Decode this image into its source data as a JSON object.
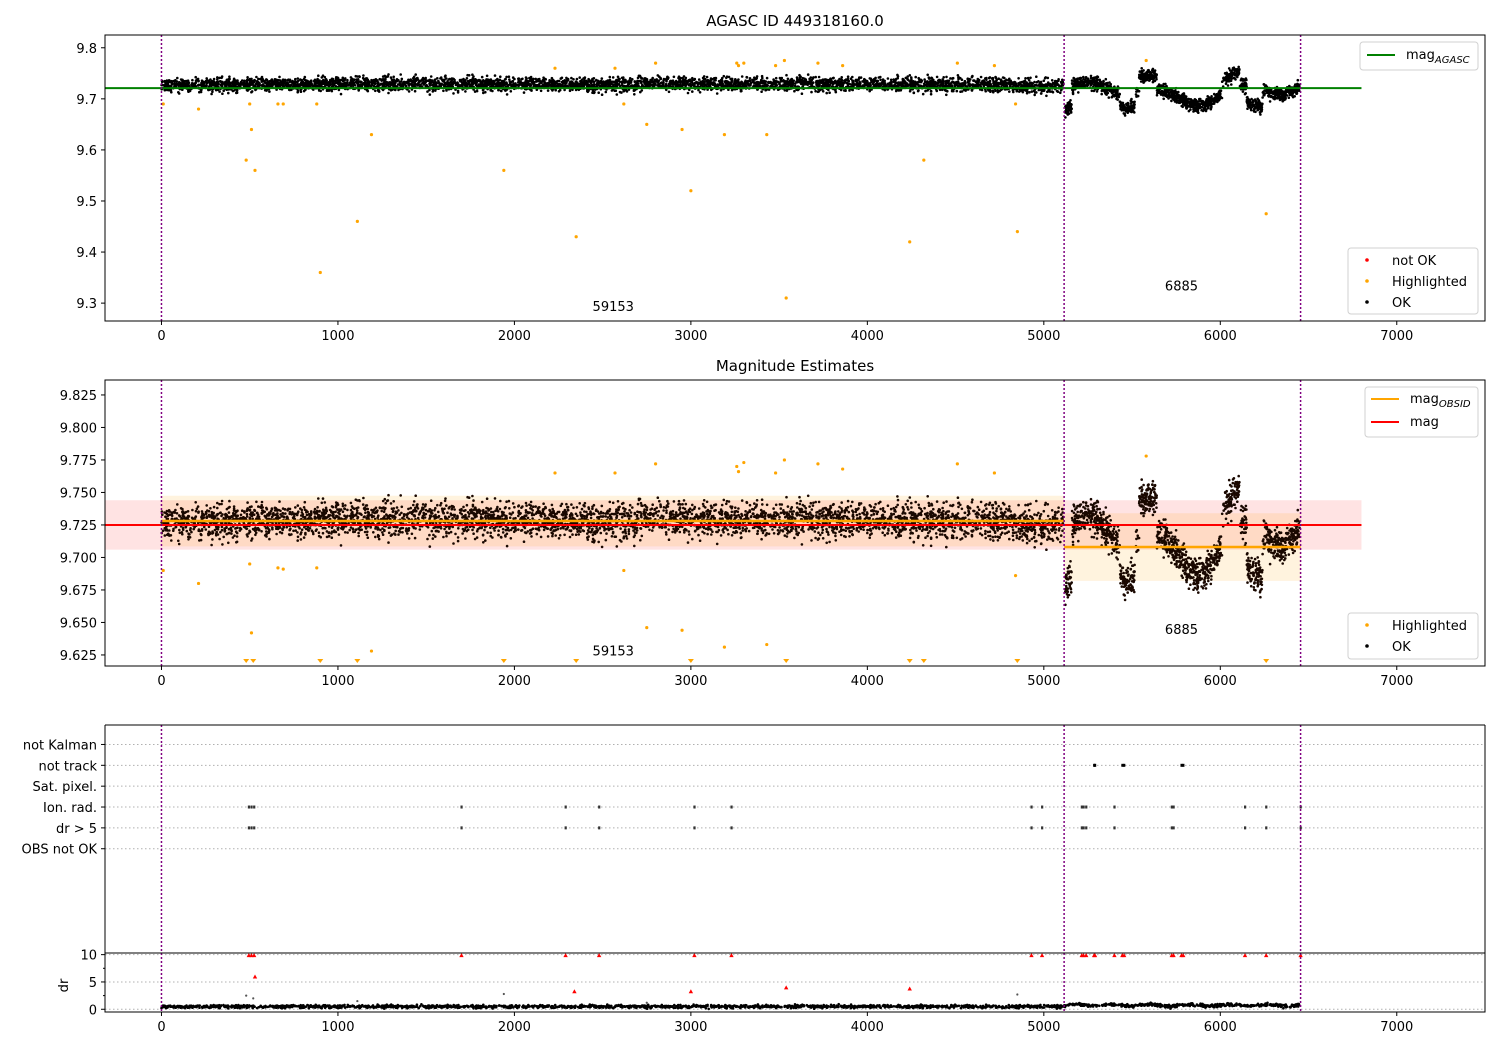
{
  "chart_data": [
    {
      "type": "scatter",
      "title": "AGASC ID 449318160.0",
      "xlabel": "",
      "ylabel": "",
      "xlim": [
        -320,
        7500
      ],
      "ylim": [
        9.265,
        9.825
      ],
      "xticks": [
        0,
        1000,
        2000,
        3000,
        4000,
        5000,
        6000,
        7000
      ],
      "yticks": [
        9.3,
        9.4,
        9.5,
        9.6,
        9.7,
        9.8
      ],
      "ytick_labels": [
        "9.3",
        "9.4",
        "9.5",
        "9.6",
        "9.7",
        "9.8"
      ],
      "vlines": [
        0,
        5115,
        6455
      ],
      "hline": {
        "y": 9.721,
        "x_range": [
          -320,
          6800
        ],
        "color": "#008000"
      },
      "annotations": [
        {
          "text": "59153",
          "x": 2560,
          "y": 9.285
        },
        {
          "text": "6885",
          "x": 5780,
          "y": 9.325
        }
      ],
      "segments": [
        {
          "x_range": [
            0,
            5115
          ],
          "mean": 9.727,
          "spread": 0.0095
        },
        {
          "x_range": [
            5115,
            6455
          ],
          "mean": 9.711,
          "spread": 0.02
        }
      ],
      "highlighted_points": [
        [
          10,
          9.69
        ],
        [
          210,
          9.68
        ],
        [
          480,
          9.58
        ],
        [
          500,
          9.69
        ],
        [
          510,
          9.64
        ],
        [
          530,
          9.56
        ],
        [
          660,
          9.69
        ],
        [
          690,
          9.69
        ],
        [
          880,
          9.69
        ],
        [
          900,
          9.36
        ],
        [
          1110,
          9.46
        ],
        [
          1190,
          9.63
        ],
        [
          1940,
          9.56
        ],
        [
          2230,
          9.76
        ],
        [
          2350,
          9.43
        ],
        [
          2570,
          9.76
        ],
        [
          2620,
          9.69
        ],
        [
          2750,
          9.65
        ],
        [
          2800,
          9.77
        ],
        [
          2950,
          9.64
        ],
        [
          3000,
          9.52
        ],
        [
          3190,
          9.63
        ],
        [
          3260,
          9.77
        ],
        [
          3270,
          9.765
        ],
        [
          3300,
          9.77
        ],
        [
          3430,
          9.63
        ],
        [
          3480,
          9.765
        ],
        [
          3530,
          9.775
        ],
        [
          3540,
          9.31
        ],
        [
          3720,
          9.77
        ],
        [
          3860,
          9.765
        ],
        [
          4240,
          9.42
        ],
        [
          4320,
          9.58
        ],
        [
          4510,
          9.77
        ],
        [
          4720,
          9.765
        ],
        [
          4840,
          9.69
        ],
        [
          4850,
          9.44
        ],
        [
          5580,
          9.775
        ],
        [
          6260,
          9.475
        ]
      ],
      "legend": {
        "placement": "top-right",
        "entries": [
          {
            "label": "mag",
            "sub": "AGASC",
            "color": "#008000"
          }
        ]
      },
      "legend2": {
        "placement": "bottom-right",
        "entries": [
          {
            "label": "not OK",
            "color": "#ff0000"
          },
          {
            "label": "Highlighted",
            "color": "#ffa500"
          },
          {
            "label": "OK",
            "color": "#000000"
          }
        ]
      }
    },
    {
      "type": "scatter",
      "title": "Magnitude Estimates",
      "xlabel": "",
      "ylabel": "",
      "xlim": [
        -320,
        7500
      ],
      "ylim": [
        9.6165,
        9.8365
      ],
      "xticks": [
        0,
        1000,
        2000,
        3000,
        4000,
        5000,
        6000,
        7000
      ],
      "yticks": [
        9.625,
        9.65,
        9.675,
        9.7,
        9.725,
        9.75,
        9.775,
        9.8,
        9.825
      ],
      "ytick_labels": [
        "9.625",
        "9.650",
        "9.675",
        "9.700",
        "9.725",
        "9.750",
        "9.775",
        "9.800",
        "9.825"
      ],
      "vlines": [
        0,
        5115,
        6455
      ],
      "mag_line": {
        "y": 9.725,
        "band": [
          9.706,
          9.744
        ],
        "x_range": [
          -320,
          6800
        ],
        "color": "#ff0000"
      },
      "mag_obsid": [
        {
          "x_range": [
            0,
            5115
          ],
          "y": 9.728,
          "band": [
            9.7085,
            9.7475
          ]
        },
        {
          "x_range": [
            5115,
            6455
          ],
          "y": 9.708,
          "band": [
            9.682,
            9.734
          ]
        }
      ],
      "annotations": [
        {
          "text": "59153",
          "x": 2560,
          "y": 9.6245
        },
        {
          "text": "6885",
          "x": 5780,
          "y": 9.641
        }
      ],
      "highlighted_points": [
        [
          10,
          9.69
        ],
        [
          210,
          9.68
        ],
        [
          500,
          9.695
        ],
        [
          510,
          9.642
        ],
        [
          660,
          9.692
        ],
        [
          690,
          9.691
        ],
        [
          880,
          9.692
        ],
        [
          1190,
          9.628
        ],
        [
          2230,
          9.765
        ],
        [
          2570,
          9.765
        ],
        [
          2620,
          9.69
        ],
        [
          2750,
          9.646
        ],
        [
          2800,
          9.772
        ],
        [
          2950,
          9.644
        ],
        [
          3190,
          9.631
        ],
        [
          3260,
          9.77
        ],
        [
          3270,
          9.766
        ],
        [
          3300,
          9.773
        ],
        [
          3430,
          9.633
        ],
        [
          3480,
          9.765
        ],
        [
          3530,
          9.775
        ],
        [
          3720,
          9.772
        ],
        [
          3860,
          9.768
        ],
        [
          4510,
          9.772
        ],
        [
          4720,
          9.765
        ],
        [
          4840,
          9.686
        ],
        [
          5580,
          9.778
        ]
      ],
      "clipped_highlighted_x": [
        480,
        520,
        900,
        1110,
        1940,
        2350,
        3000,
        3540,
        4240,
        4320,
        4850,
        6260
      ],
      "legend": {
        "placement": "top-right",
        "entries": [
          {
            "label": "mag",
            "sub": "OBSID",
            "color": "#ffa500"
          },
          {
            "label": "mag",
            "color": "#ff0000"
          }
        ]
      },
      "legend2": {
        "placement": "bottom-right",
        "entries": [
          {
            "label": "Highlighted",
            "color": "#ffa500"
          },
          {
            "label": "OK",
            "color": "#000000"
          }
        ]
      }
    },
    {
      "type": "scatter",
      "title": "",
      "xlabel": "",
      "ylabel": "",
      "xlim": [
        -320,
        7500
      ],
      "ylim": [
        -0.5,
        15.9
      ],
      "ytick_labels": [
        "not Kalman",
        "not track",
        "Sat. pixel.",
        "Ion. rad.",
        "dr > 5",
        "OBS not OK"
      ],
      "ytick_values": [
        14.5,
        13,
        11.5,
        10,
        8.5,
        7
      ],
      "vlines": [
        0,
        5115,
        6455
      ],
      "flags": {
        "not track": [
          5285,
          5290,
          5445,
          5455,
          5780,
          5790
        ],
        "Ion. rad.": [
          495,
          510,
          525,
          1700,
          2290,
          2480,
          3020,
          3230,
          4930,
          4990,
          5215,
          5225,
          5240,
          5400,
          5725,
          5735,
          6140,
          6260,
          6455
        ],
        "dr > 5": [
          495,
          510,
          525,
          1700,
          2290,
          2480,
          3020,
          3230,
          4930,
          4990,
          5215,
          5225,
          5240,
          5400,
          5725,
          5735,
          6140,
          6260,
          6455
        ]
      }
    },
    {
      "type": "scatter",
      "title": "",
      "xlabel": "",
      "ylabel": "dr",
      "xlim": [
        -320,
        7500
      ],
      "ylim": [
        -0.5,
        10.3
      ],
      "xticks": [
        0,
        1000,
        2000,
        3000,
        4000,
        5000,
        6000,
        7000
      ],
      "yticks": [
        0,
        5,
        10
      ],
      "ytick_labels": [
        "0",
        "5",
        "10"
      ],
      "vlines": [
        0,
        5115,
        6455
      ],
      "typical_dr": 0.5,
      "not_ok_points": [
        [
          495,
          9.9
        ],
        [
          510,
          9.9
        ],
        [
          525,
          9.9
        ],
        [
          530,
          6.0
        ],
        [
          1700,
          9.9
        ],
        [
          2290,
          9.9
        ],
        [
          2340,
          3.3
        ],
        [
          2480,
          9.9
        ],
        [
          3000,
          3.3
        ],
        [
          3020,
          9.9
        ],
        [
          3230,
          9.9
        ],
        [
          3540,
          4.0
        ],
        [
          4240,
          3.8
        ],
        [
          4930,
          9.9
        ],
        [
          4990,
          9.9
        ],
        [
          5215,
          9.9
        ],
        [
          5225,
          9.9
        ],
        [
          5240,
          9.9
        ],
        [
          5285,
          9.9
        ],
        [
          5290,
          9.9
        ],
        [
          5400,
          9.9
        ],
        [
          5445,
          9.9
        ],
        [
          5455,
          9.9
        ],
        [
          5725,
          9.9
        ],
        [
          5735,
          9.9
        ],
        [
          5780,
          9.9
        ],
        [
          5790,
          9.9
        ],
        [
          6140,
          9.9
        ],
        [
          6260,
          9.9
        ],
        [
          6455,
          9.9
        ]
      ],
      "ok_outliers": [
        [
          480,
          2.5
        ],
        [
          1110,
          1.5
        ],
        [
          1940,
          2.8
        ],
        [
          2750,
          1.2
        ],
        [
          4850,
          2.7
        ],
        [
          520,
          2.0
        ]
      ]
    }
  ]
}
